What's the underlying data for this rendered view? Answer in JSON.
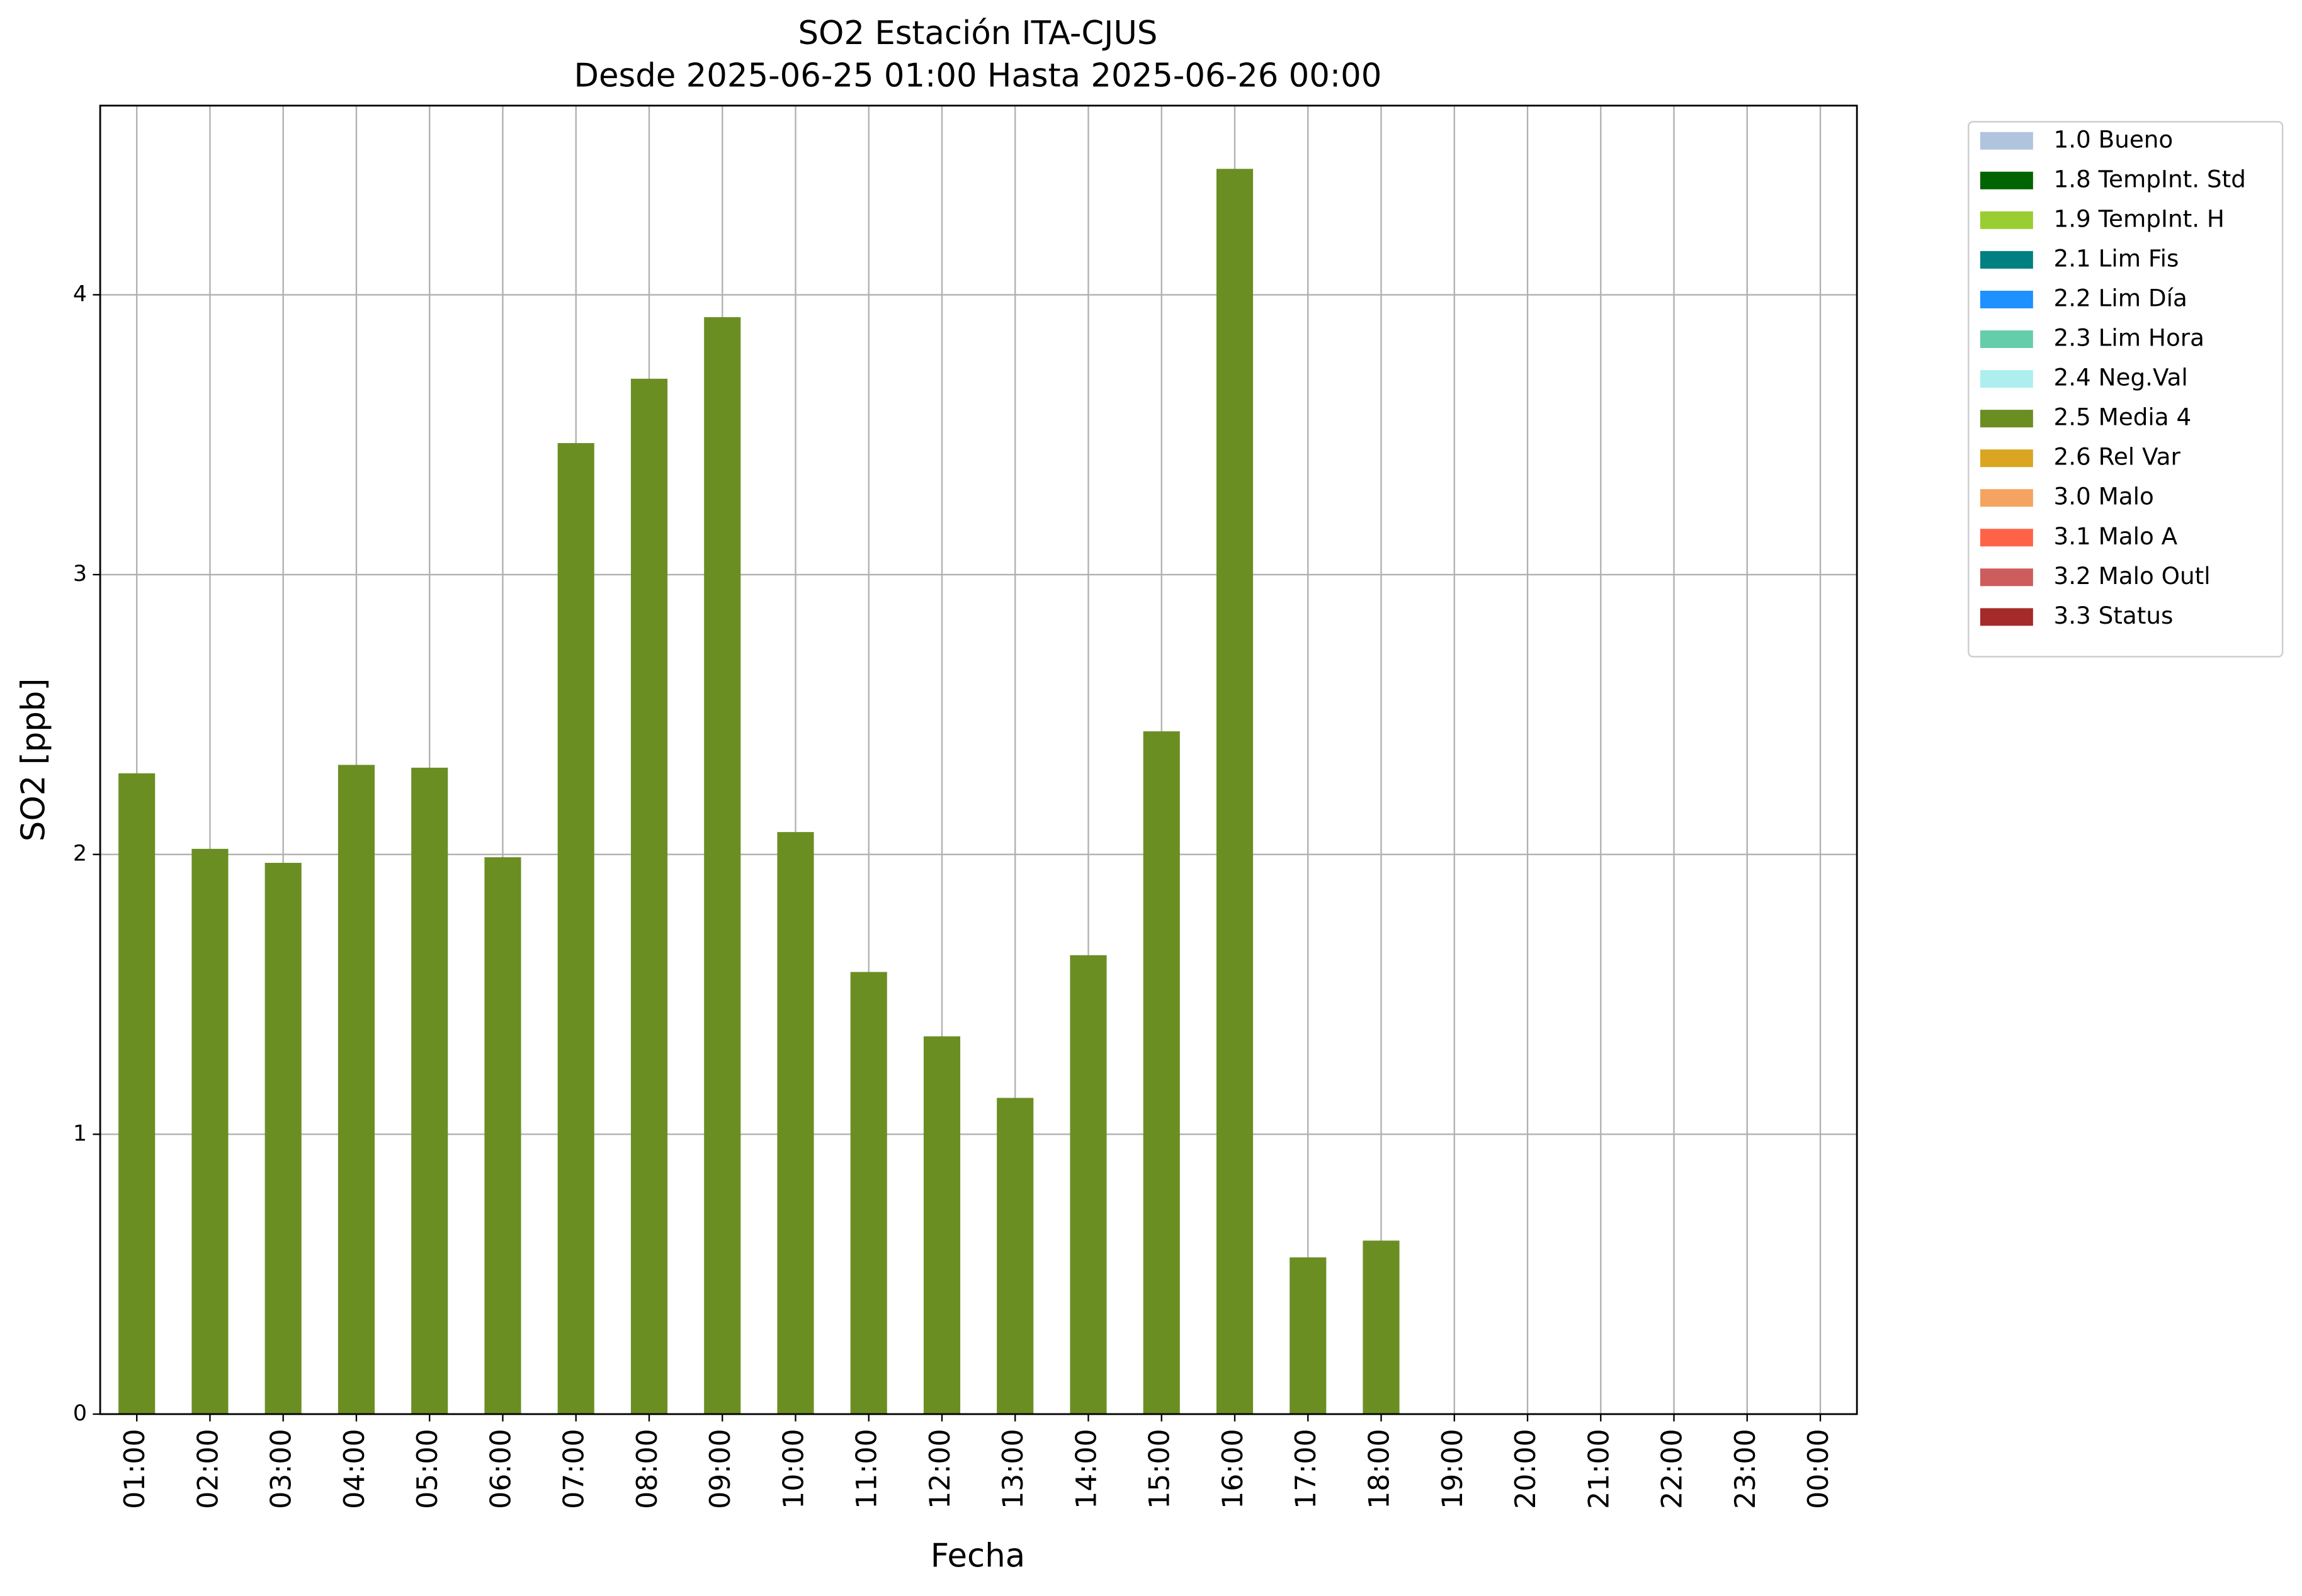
{
  "chart_data": {
    "type": "bar",
    "stacked": true,
    "title": "SO2 Estación ITA-CJUS",
    "subtitle": "Desde 2025-06-25 01:00 Hasta 2025-06-26 00:00",
    "x_label": "Fecha",
    "y_label": "SO2 [ppb]",
    "categories": [
      "01:00",
      "02:00",
      "03:00",
      "04:00",
      "05:00",
      "06:00",
      "07:00",
      "08:00",
      "09:00",
      "10:00",
      "11:00",
      "12:00",
      "13:00",
      "14:00",
      "15:00",
      "16:00",
      "17:00",
      "18:00",
      "19:00",
      "20:00",
      "21:00",
      "22:00",
      "23:00",
      "00:00"
    ],
    "series": [
      {
        "name": "1.0 Bueno",
        "color": "#b0c4de",
        "values": [
          null,
          null,
          null,
          null,
          null,
          null,
          null,
          null,
          null,
          null,
          null,
          null,
          null,
          null,
          null,
          null,
          null,
          null,
          null,
          null,
          null,
          null,
          null,
          null
        ]
      },
      {
        "name": "1.8 TempInt. Std",
        "color": "#006400",
        "values": [
          null,
          null,
          null,
          null,
          null,
          null,
          null,
          null,
          null,
          null,
          null,
          null,
          null,
          null,
          null,
          null,
          null,
          null,
          null,
          null,
          null,
          null,
          null,
          null
        ]
      },
      {
        "name": "1.9 TempInt. H",
        "color": "#9acd32",
        "values": [
          null,
          null,
          null,
          null,
          null,
          null,
          null,
          null,
          null,
          null,
          null,
          null,
          null,
          null,
          null,
          null,
          null,
          null,
          null,
          null,
          null,
          null,
          null,
          null
        ]
      },
      {
        "name": "2.1 Lim Fis",
        "color": "#008080",
        "values": [
          null,
          null,
          null,
          null,
          null,
          null,
          null,
          null,
          null,
          null,
          null,
          null,
          null,
          null,
          null,
          null,
          null,
          null,
          null,
          null,
          null,
          null,
          null,
          null
        ]
      },
      {
        "name": "2.2 Lim Día",
        "color": "#1e90ff",
        "values": [
          null,
          null,
          null,
          null,
          null,
          null,
          null,
          null,
          null,
          null,
          null,
          null,
          null,
          null,
          null,
          null,
          null,
          null,
          null,
          null,
          null,
          null,
          null,
          null
        ]
      },
      {
        "name": "2.3 Lim Hora",
        "color": "#66cdaa",
        "values": [
          null,
          null,
          null,
          null,
          null,
          null,
          null,
          null,
          null,
          null,
          null,
          null,
          null,
          null,
          null,
          null,
          null,
          null,
          null,
          null,
          null,
          null,
          null,
          null
        ]
      },
      {
        "name": "2.4 Neg.Val",
        "color": "#afeeee",
        "values": [
          null,
          null,
          null,
          null,
          null,
          null,
          null,
          null,
          null,
          null,
          null,
          null,
          null,
          null,
          null,
          null,
          null,
          null,
          null,
          null,
          null,
          null,
          null,
          null
        ]
      },
      {
        "name": "2.5 Media 4",
        "color": "#6b8e23",
        "values": [
          2.29,
          2.02,
          1.97,
          2.32,
          2.31,
          1.99,
          3.47,
          3.7,
          3.92,
          2.08,
          1.58,
          1.35,
          1.13,
          1.64,
          2.44,
          4.45,
          0.56,
          0.62,
          null,
          null,
          null,
          null,
          null,
          null
        ]
      },
      {
        "name": "2.6 Rel Var",
        "color": "#daa520",
        "values": [
          null,
          null,
          null,
          null,
          null,
          null,
          null,
          null,
          null,
          null,
          null,
          null,
          null,
          null,
          null,
          null,
          null,
          null,
          null,
          null,
          null,
          null,
          null,
          null
        ]
      },
      {
        "name": "3.0 Malo",
        "color": "#f4a460",
        "values": [
          null,
          null,
          null,
          null,
          null,
          null,
          null,
          null,
          null,
          null,
          null,
          null,
          null,
          null,
          null,
          null,
          null,
          null,
          null,
          null,
          null,
          null,
          null,
          null
        ]
      },
      {
        "name": "3.1 Malo A",
        "color": "#ff6347",
        "values": [
          null,
          null,
          null,
          null,
          null,
          null,
          null,
          null,
          null,
          null,
          null,
          null,
          null,
          null,
          null,
          null,
          null,
          null,
          null,
          null,
          null,
          null,
          null,
          null
        ]
      },
      {
        "name": "3.2 Malo Outl",
        "color": "#cd5c5c",
        "values": [
          null,
          null,
          null,
          null,
          null,
          null,
          null,
          null,
          null,
          null,
          null,
          null,
          null,
          null,
          null,
          null,
          null,
          null,
          null,
          null,
          null,
          null,
          null,
          null
        ]
      },
      {
        "name": "3.3 Status",
        "color": "#a52a2a",
        "values": [
          null,
          null,
          null,
          null,
          null,
          null,
          null,
          null,
          null,
          null,
          null,
          null,
          null,
          null,
          null,
          null,
          null,
          null,
          null,
          null,
          null,
          null,
          null,
          null
        ]
      }
    ],
    "ylim": [
      0,
      4.676
    ],
    "yticks": [
      0,
      1,
      2,
      3,
      4
    ],
    "grid": true,
    "legend_position": "outside-right"
  }
}
